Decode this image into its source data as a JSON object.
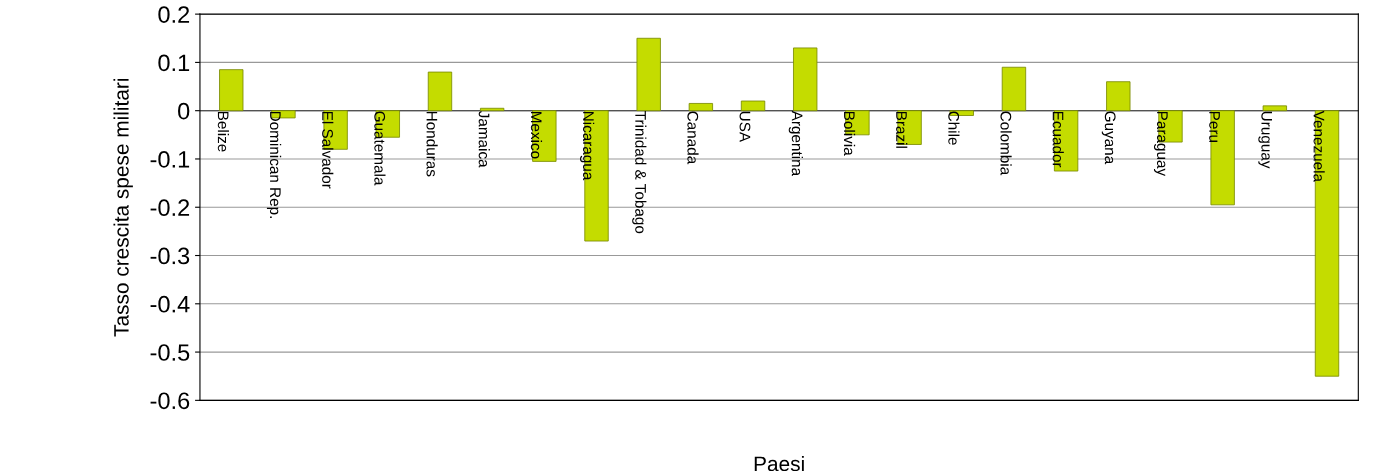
{
  "chart_data": {
    "type": "bar",
    "xlabel": "Paesi",
    "ylabel": "Tasso crescita spese militari",
    "categories": [
      "Belize",
      "Dominican Rep.",
      "El Salvador",
      "Guatemala",
      "Honduras",
      "Jamaica",
      "Mexico",
      "Nicaragua",
      "Trinidad & Tobago",
      "Canada",
      "USA",
      "Argentina",
      "Bolivia",
      "Brazil",
      "Chile",
      "Colombia",
      "Ecuador",
      "Guyana",
      "Paraguay",
      "Peru",
      "Uruguay",
      "Venezuela"
    ],
    "values": [
      0.085,
      -0.015,
      -0.08,
      -0.055,
      0.08,
      0.005,
      -0.105,
      -0.27,
      0.15,
      0.015,
      0.02,
      0.13,
      -0.05,
      -0.07,
      -0.01,
      0.09,
      -0.125,
      0.06,
      -0.065,
      -0.195,
      0.01,
      -0.55
    ],
    "color": "#c4dc00",
    "ylim": [
      -0.6,
      0.2
    ],
    "yticks": [
      -0.6,
      -0.5,
      -0.4,
      -0.3,
      -0.2,
      -0.1,
      0,
      0.1,
      0.2
    ],
    "grid": "y"
  }
}
